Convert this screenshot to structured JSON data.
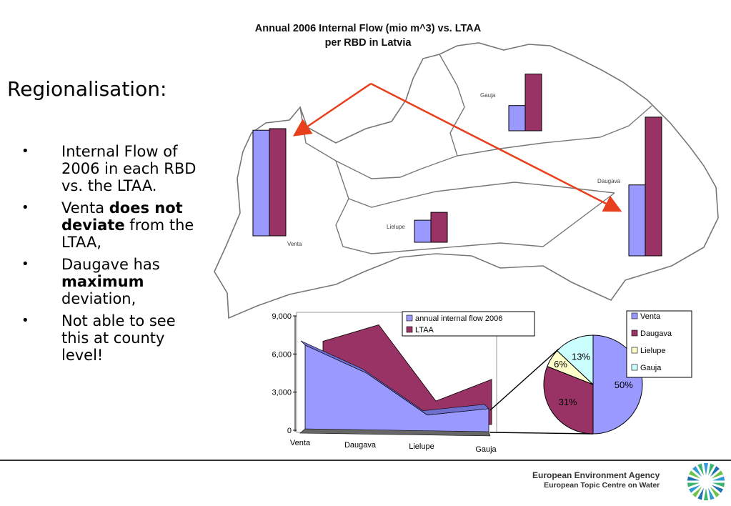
{
  "slide": {
    "heading": "Regionalisation:",
    "map_title_line1": "Annual 2006 Internal Flow (mio m^3) vs. LTAA",
    "map_title_line2": "per RBD in Latvia",
    "bullets": [
      {
        "text": "Internal Flow of 2006 in each RBD vs. the LTAA."
      },
      {
        "pre": "Venta ",
        "bold": "does not deviate",
        "post": " from the LTAA,"
      },
      {
        "pre": "Daugave has ",
        "bold": "maximum",
        "post": " deviation,"
      },
      {
        "text": "Not able to see this at county level!"
      }
    ],
    "bullet_glyph": "•"
  },
  "map": {
    "regions": [
      "Gauja",
      "Daugava",
      "Lielupe",
      "Venta"
    ],
    "arrow_color": "#e8401c"
  },
  "chart_data": [
    {
      "type": "bar",
      "title": "Annual 2006 Internal Flow (mio m^3) vs. LTAA per RBD in Latvia",
      "categories": [
        "Venta",
        "Daugava",
        "Lielupe",
        "Gauja"
      ],
      "series": [
        {
          "name": "annual internal flow 2006",
          "values": [
            6700,
            4500,
            1400,
            1600
          ]
        },
        {
          "name": "LTAA",
          "values": [
            6800,
            8800,
            1900,
            3600
          ]
        }
      ],
      "colors": [
        "#9999ff",
        "#993366"
      ]
    },
    {
      "type": "area",
      "categories": [
        "Venta",
        "Daugava",
        "Lielupe",
        "Gauja"
      ],
      "ylim": [
        0,
        9000
      ],
      "yticks": [
        "9,000",
        "6,000",
        "3,000",
        "0"
      ],
      "series": [
        {
          "name": "annual internal flow 2006",
          "values": [
            6700,
            4500,
            1200,
            1700
          ],
          "color": "#9999ff"
        },
        {
          "name": "LTAA",
          "values": [
            7000,
            8300,
            2300,
            4000
          ],
          "color": "#993366"
        }
      ],
      "legend": "top-right"
    },
    {
      "type": "pie",
      "labels": [
        "Venta",
        "Daugava",
        "Lielupe",
        "Gauja"
      ],
      "values": [
        50,
        31,
        6,
        13
      ],
      "value_labels": [
        "50%",
        "31%",
        "6%",
        "13%"
      ],
      "colors": [
        "#9999ff",
        "#993366",
        "#ffffcc",
        "#ccffff"
      ],
      "legend": "right"
    }
  ],
  "footer": {
    "org_line1": "European Environment Agency",
    "org_line2": "European Topic Centre on Water"
  }
}
